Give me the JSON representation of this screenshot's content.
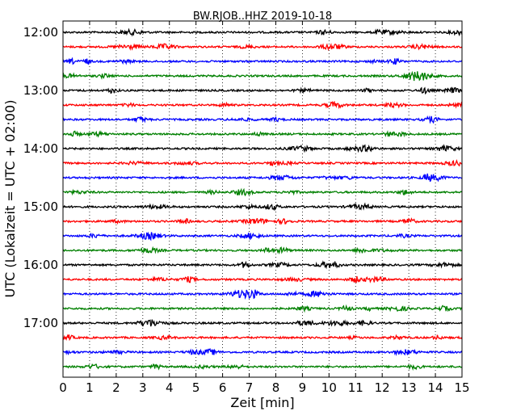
{
  "chart_data": {
    "type": "line",
    "title": "BW.RJOB..HHZ 2019-10-18",
    "xlabel": "Zeit  [min]",
    "ylabel": "UTC (Lokalzeit = UTC + 02:00)",
    "xlim": [
      0,
      15
    ],
    "x_ticks": [
      "0",
      "1",
      "2",
      "3",
      "4",
      "5",
      "6",
      "7",
      "8",
      "9",
      "10",
      "11",
      "12",
      "13",
      "14",
      "15"
    ],
    "y_ticks": [
      "12:00",
      "13:00",
      "14:00",
      "15:00",
      "16:00",
      "17:00"
    ],
    "grid": "vertical-dotted",
    "trace_interval_minutes": 15,
    "start_time": "12:00",
    "colors": [
      "#000000",
      "#ff0000",
      "#0000ff",
      "#008000"
    ],
    "traces": [
      {
        "start": "12:00",
        "color": "#000000"
      },
      {
        "start": "12:15",
        "color": "#ff0000"
      },
      {
        "start": "12:30",
        "color": "#0000ff"
      },
      {
        "start": "12:45",
        "color": "#008000"
      },
      {
        "start": "13:00",
        "color": "#000000"
      },
      {
        "start": "13:15",
        "color": "#ff0000"
      },
      {
        "start": "13:30",
        "color": "#0000ff"
      },
      {
        "start": "13:45",
        "color": "#008000"
      },
      {
        "start": "14:00",
        "color": "#000000"
      },
      {
        "start": "14:15",
        "color": "#ff0000"
      },
      {
        "start": "14:30",
        "color": "#0000ff"
      },
      {
        "start": "14:45",
        "color": "#008000"
      },
      {
        "start": "15:00",
        "color": "#000000"
      },
      {
        "start": "15:15",
        "color": "#ff0000"
      },
      {
        "start": "15:30",
        "color": "#0000ff"
      },
      {
        "start": "15:45",
        "color": "#008000"
      },
      {
        "start": "16:00",
        "color": "#000000"
      },
      {
        "start": "16:15",
        "color": "#ff0000"
      },
      {
        "start": "16:30",
        "color": "#0000ff"
      },
      {
        "start": "16:45",
        "color": "#008000"
      },
      {
        "start": "17:00",
        "color": "#000000"
      },
      {
        "start": "17:15",
        "color": "#ff0000"
      },
      {
        "start": "17:30",
        "color": "#0000ff"
      },
      {
        "start": "17:45",
        "color": "#008000"
      }
    ]
  }
}
